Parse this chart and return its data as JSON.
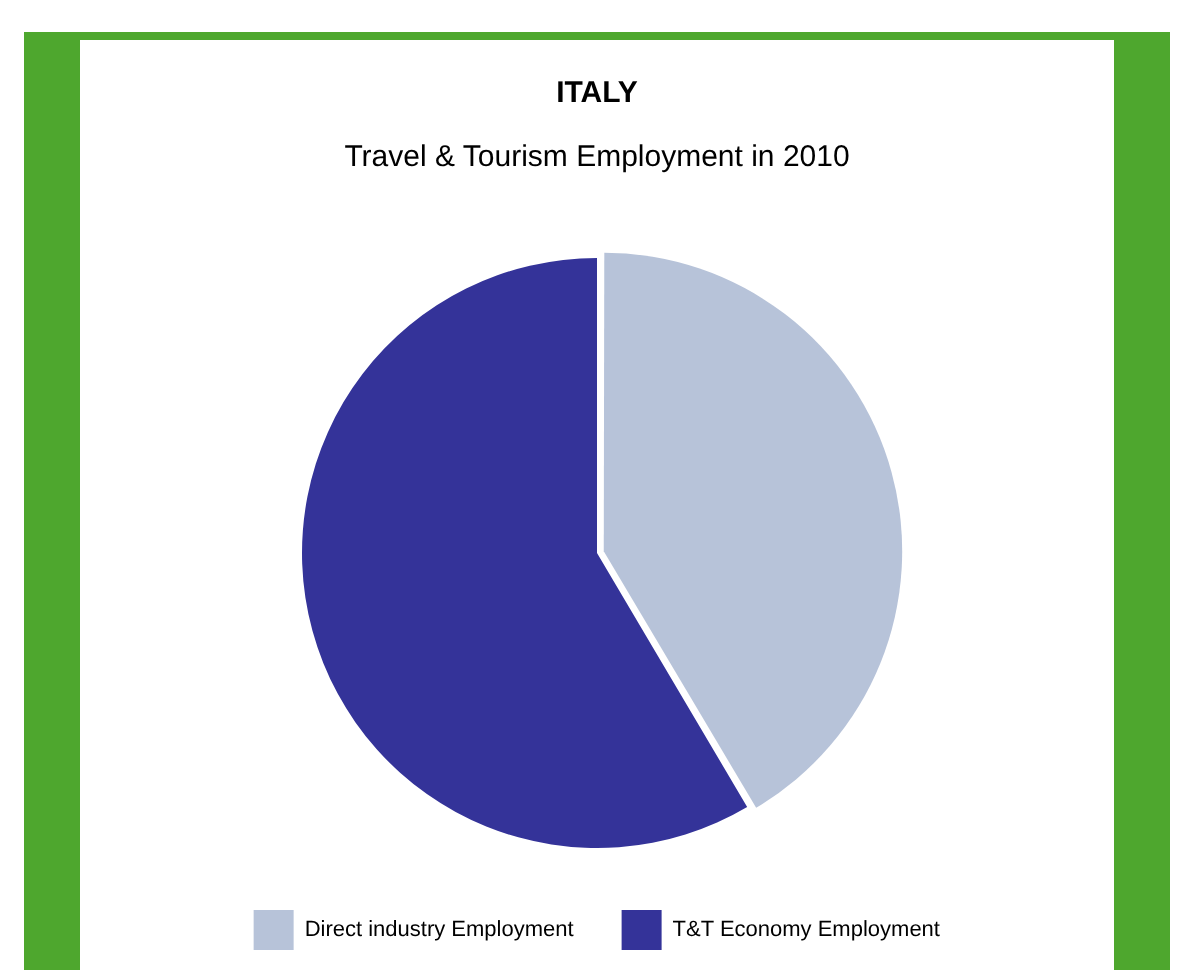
{
  "chart_data": {
    "type": "pie",
    "title": "ITALY",
    "subtitle": "Travel & Tourism Employment in 2010",
    "categories": [
      "Direct industry Employment",
      "T&T Economy Employment"
    ],
    "values": [
      41.5,
      58.5
    ],
    "colors": [
      "#b7c3d9",
      "#343399"
    ],
    "legend": "bottom"
  }
}
